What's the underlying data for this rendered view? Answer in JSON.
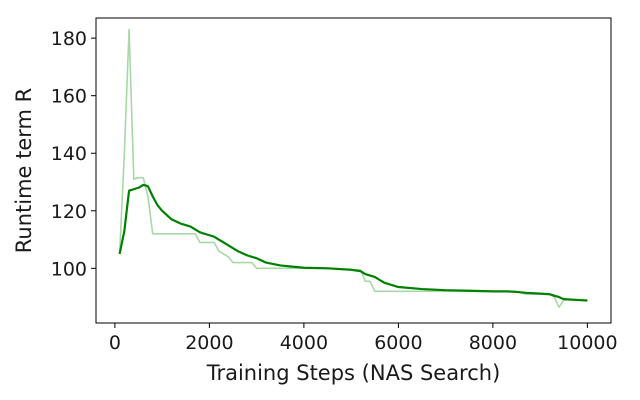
{
  "chart_data": {
    "type": "line",
    "title": "",
    "xlabel": "Training Steps (NAS Search)",
    "ylabel": "Runtime term R",
    "xlim": [
      -400,
      10500
    ],
    "ylim": [
      81,
      187
    ],
    "x_ticks": [
      0,
      2000,
      4000,
      6000,
      8000,
      10000
    ],
    "y_ticks": [
      100,
      120,
      140,
      160,
      180
    ],
    "grid": false,
    "legend": "none",
    "series": [
      {
        "role": "raw",
        "color": "#a8d8a8",
        "x": [
          100,
          200,
          300,
          400,
          500,
          600,
          700,
          800,
          900,
          1000,
          1200,
          1400,
          1600,
          1700,
          1800,
          2000,
          2100,
          2200,
          2400,
          2500,
          2600,
          2900,
          3000,
          3500,
          4000,
          4500,
          5000,
          5200,
          5300,
          5400,
          5500,
          6000,
          6500,
          7000,
          7500,
          8000,
          8500,
          8600,
          8700,
          9000,
          9200,
          9300,
          9400,
          9500,
          10000
        ],
        "y": [
          105,
          140,
          183,
          131,
          131.5,
          131.5,
          125,
          112,
          112,
          112,
          112,
          112,
          112,
          112,
          109,
          109,
          109,
          106,
          104,
          102,
          102,
          102,
          100,
          100,
          100,
          100,
          99.5,
          99.5,
          95.5,
          95.5,
          92,
          92,
          92,
          92,
          92,
          92,
          92,
          91.5,
          91,
          91,
          91,
          90,
          86.5,
          89,
          89
        ]
      },
      {
        "role": "smoothed",
        "color": "#008000",
        "x": [
          100,
          200,
          300,
          400,
          500,
          600,
          650,
          700,
          800,
          900,
          1000,
          1200,
          1400,
          1600,
          1800,
          2000,
          2100,
          2200,
          2400,
          2600,
          2800,
          3000,
          3200,
          3500,
          4000,
          4500,
          5000,
          5200,
          5300,
          5400,
          5500,
          5700,
          6000,
          6500,
          7000,
          7500,
          8000,
          8300,
          8500,
          8700,
          9000,
          9200,
          9300,
          9400,
          9500,
          10000
        ],
        "y": [
          105,
          113,
          127,
          127.5,
          128,
          129,
          128.8,
          128.5,
          125,
          122,
          120,
          117,
          115.5,
          114.5,
          112.5,
          111.5,
          111,
          110,
          108,
          106,
          104.5,
          103.5,
          102,
          101,
          100.2,
          100,
          99.5,
          99,
          98,
          97.5,
          97,
          95,
          93.5,
          92.8,
          92.4,
          92.2,
          92,
          92,
          91.8,
          91.5,
          91.2,
          91,
          90.5,
          90,
          89.3,
          88.8
        ]
      }
    ]
  }
}
